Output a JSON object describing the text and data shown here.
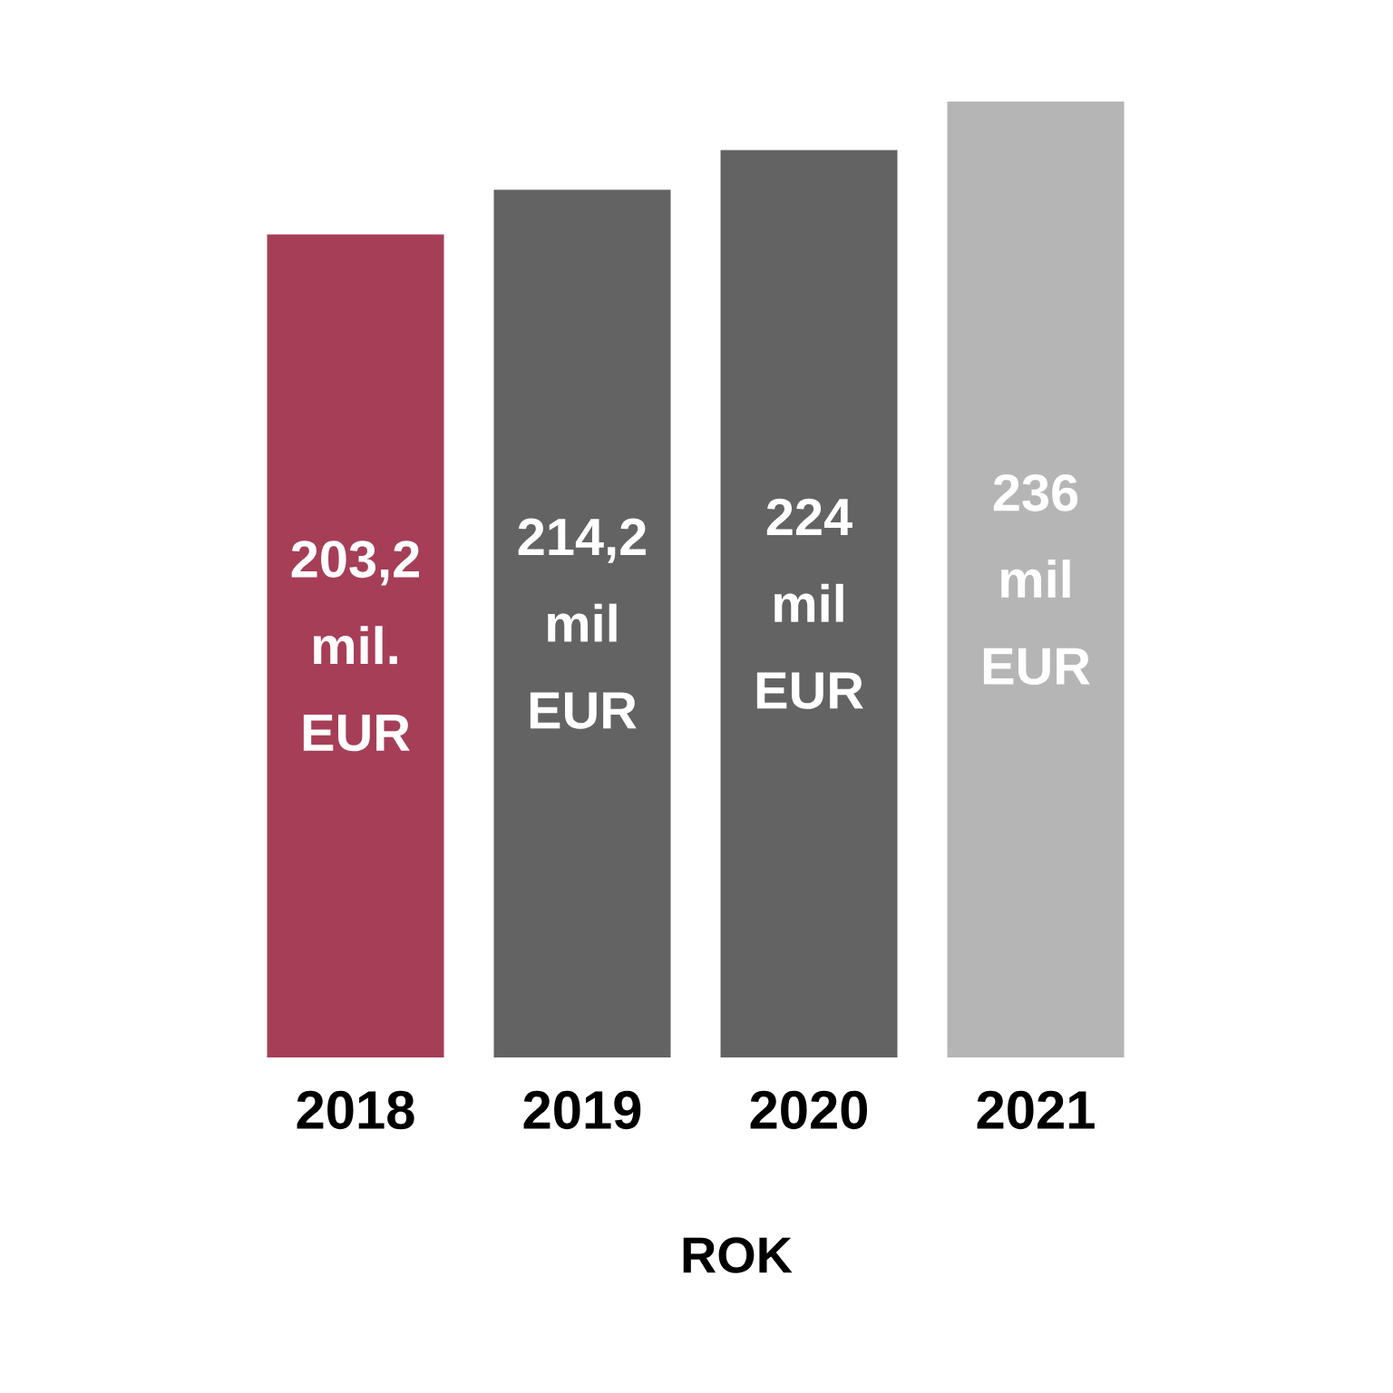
{
  "chart_data": {
    "type": "bar",
    "xlabel": "ROK",
    "categories": [
      "2018",
      "2019",
      "2020",
      "2021"
    ],
    "values": [
      203.2,
      214.2,
      224,
      236
    ],
    "value_labels": [
      "203,2 mil. EUR",
      "214,2 mil EUR",
      "224 mil EUR",
      "236 mil EUR"
    ],
    "colors": [
      "#a63e58",
      "#636363",
      "#636363",
      "#b5b5b5"
    ]
  }
}
